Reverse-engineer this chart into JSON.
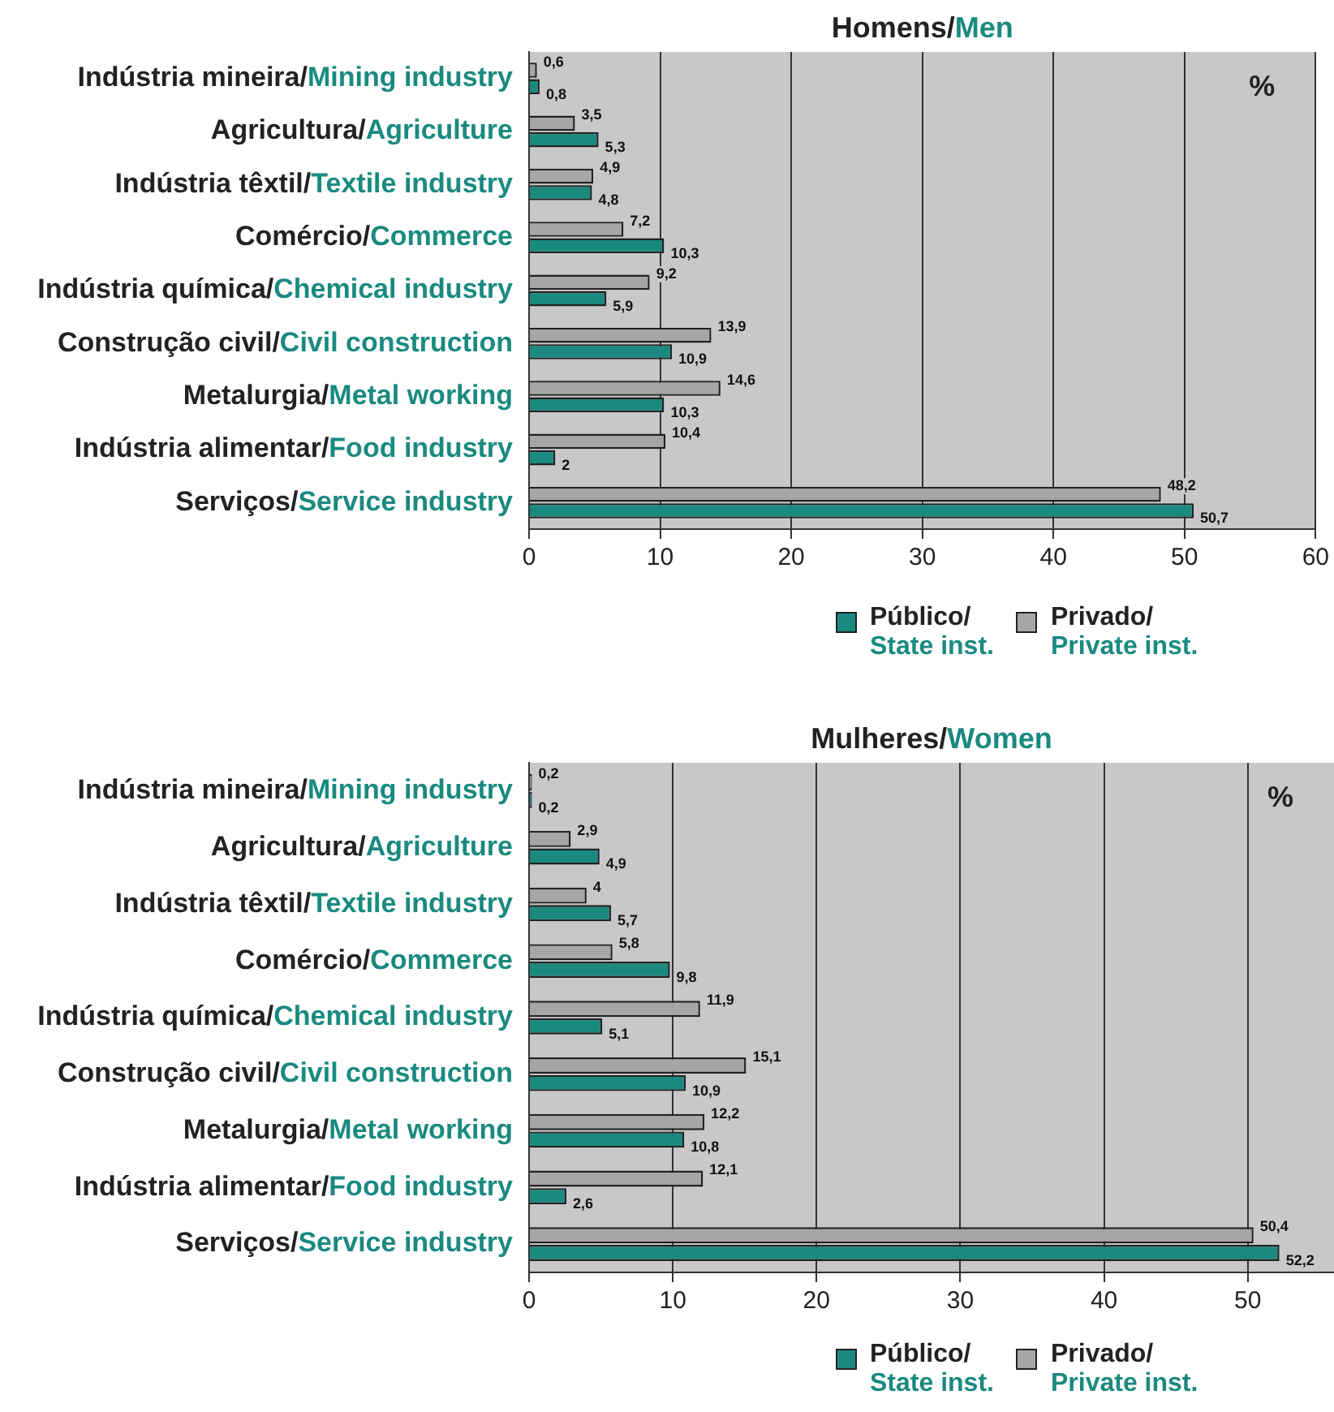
{
  "chart_data": [
    {
      "type": "bar",
      "orientation": "horizontal",
      "title": "Homens/Men",
      "categories": [
        "Indústria mineira/Mining industry",
        "Agricultura/Agriculture",
        "Indústria têxtil/Textile industry",
        "Comércio/Commerce",
        "Indústria química/Chemical industry",
        "Construção civil/Civil construction",
        "Metalurgia/Metal working",
        "Indústria alimentar/Food industry",
        "Serviços/Service industry"
      ],
      "series": [
        {
          "name": "Privado/Private inst.",
          "color": "#a6a6a6",
          "values": [
            0.6,
            3.5,
            4.9,
            7.2,
            9.2,
            13.9,
            14.6,
            10.4,
            48.2
          ],
          "value_labels": [
            "0,6",
            "3,5",
            "4,9",
            "7,2",
            "9,2",
            "13,9",
            "14,6",
            "10,4",
            "48,2"
          ]
        },
        {
          "name": "Público/State inst.",
          "color": "#1a8a80",
          "values": [
            0.8,
            5.3,
            4.8,
            10.3,
            5.9,
            10.9,
            10.3,
            2,
            50.7
          ],
          "value_labels": [
            "0,8",
            "5,3",
            "4,8",
            "10,3",
            "5,9",
            "10,9",
            "10,3",
            "2",
            "50,7"
          ]
        }
      ],
      "xlim": [
        0,
        60
      ],
      "xticks": [
        0,
        10,
        20,
        30,
        40,
        50,
        60
      ],
      "grid": "x",
      "legend": "bottom",
      "annotations": [
        "%"
      ]
    },
    {
      "type": "bar",
      "orientation": "horizontal",
      "title": "Mulheres/Women",
      "categories": [
        "Indústria mineira/Mining industry",
        "Agricultura/Agriculture",
        "Indústria têxtil/Textile industry",
        "Comércio/Commerce",
        "Indústria química/Chemical industry",
        "Construção civil/Civil construction",
        "Metalurgia/Metal working",
        "Indústria alimentar/Food industry",
        "Serviços/Service industry"
      ],
      "series": [
        {
          "name": "Privado/Private inst.",
          "color": "#a6a6a6",
          "values": [
            0.2,
            2.9,
            4,
            5.8,
            11.9,
            15.1,
            12.2,
            12.1,
            50.4
          ],
          "value_labels": [
            "0,2",
            "2,9",
            "4",
            "5,8",
            "11,9",
            "15,1",
            "12,2",
            "12,1",
            "50,4"
          ]
        },
        {
          "name": "Público/State inst.",
          "color": "#1a8a80",
          "values": [
            0.2,
            4.9,
            5.7,
            9.8,
            5.1,
            10.9,
            10.8,
            2.6,
            52.2
          ],
          "value_labels": [
            "0,2",
            "4,9",
            "5,7",
            "9,8",
            "5,1",
            "10,9",
            "10,8",
            "2,6",
            "52,2"
          ]
        }
      ],
      "xlim": [
        0,
        56
      ],
      "xticks": [
        0,
        10,
        20,
        30,
        40,
        50
      ],
      "grid": "x",
      "legend": "bottom",
      "annotations": [
        "%"
      ]
    }
  ]
}
